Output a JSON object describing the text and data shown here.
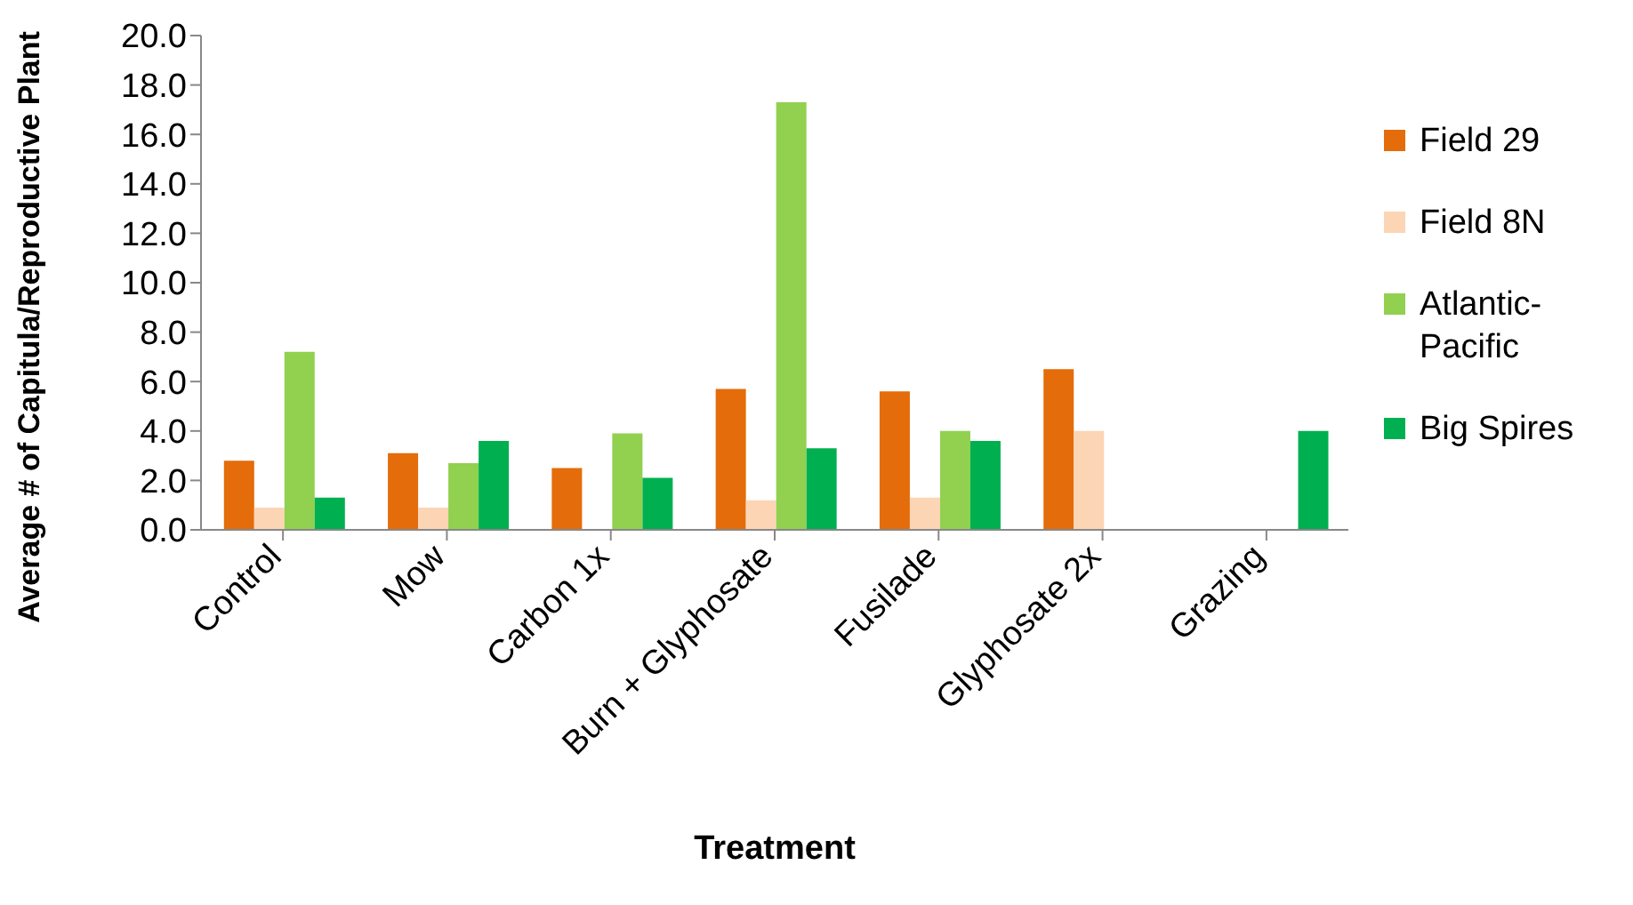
{
  "chart_data": {
    "type": "bar",
    "xlabel": "Treatment",
    "ylabel": "Average # of Capitula/Reproductive Plant",
    "categories": [
      "Control",
      "Mow",
      "Carbon 1x",
      "Burn + Glyphosate",
      "Fusilade",
      "Glyphosate 2x",
      "Grazing"
    ],
    "series": [
      {
        "name": "Field 29",
        "color": "#e46c0a",
        "values": [
          2.8,
          3.1,
          2.5,
          5.7,
          5.6,
          6.5,
          null
        ]
      },
      {
        "name": "Field 8N",
        "color": "#fcd5b5",
        "values": [
          0.9,
          0.9,
          null,
          1.2,
          1.3,
          4.0,
          null
        ]
      },
      {
        "name": "Atlantic-Pacific",
        "color": "#92d050",
        "values": [
          7.2,
          2.7,
          3.9,
          17.3,
          4.0,
          null,
          null
        ]
      },
      {
        "name": "Big Spires",
        "color": "#00b050",
        "values": [
          1.3,
          3.6,
          2.1,
          3.3,
          3.6,
          null,
          4.0
        ]
      }
    ],
    "ylim": [
      0,
      20
    ],
    "yticks": [
      {
        "value": 0,
        "label": "0.0"
      },
      {
        "value": 2,
        "label": "2.0"
      },
      {
        "value": 4,
        "label": "4.0"
      },
      {
        "value": 6,
        "label": "6.0"
      },
      {
        "value": 8,
        "label": "8.0"
      },
      {
        "value": 10,
        "label": "10.0"
      },
      {
        "value": 12,
        "label": "12.0"
      },
      {
        "value": 14,
        "label": "14.0"
      },
      {
        "value": 16,
        "label": "16.0"
      },
      {
        "value": 18,
        "label": "18.0"
      },
      {
        "value": 20,
        "label": "20.0"
      }
    ],
    "grid": false,
    "legend": "right"
  }
}
